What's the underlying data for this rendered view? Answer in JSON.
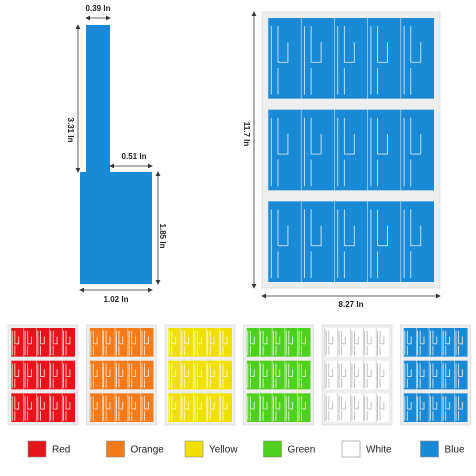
{
  "dimensions": {
    "top_width": "0.39 In",
    "total_height": "3.31 In",
    "step_width": "0.51 In",
    "bottom_height": "1.85 In",
    "bottom_width": "1.02 In",
    "sheet_height": "11.7 In",
    "sheet_width": "8.27 In"
  },
  "colors": [
    "Red",
    "Orange",
    "Yellow",
    "Green",
    "White",
    "Blue"
  ]
}
